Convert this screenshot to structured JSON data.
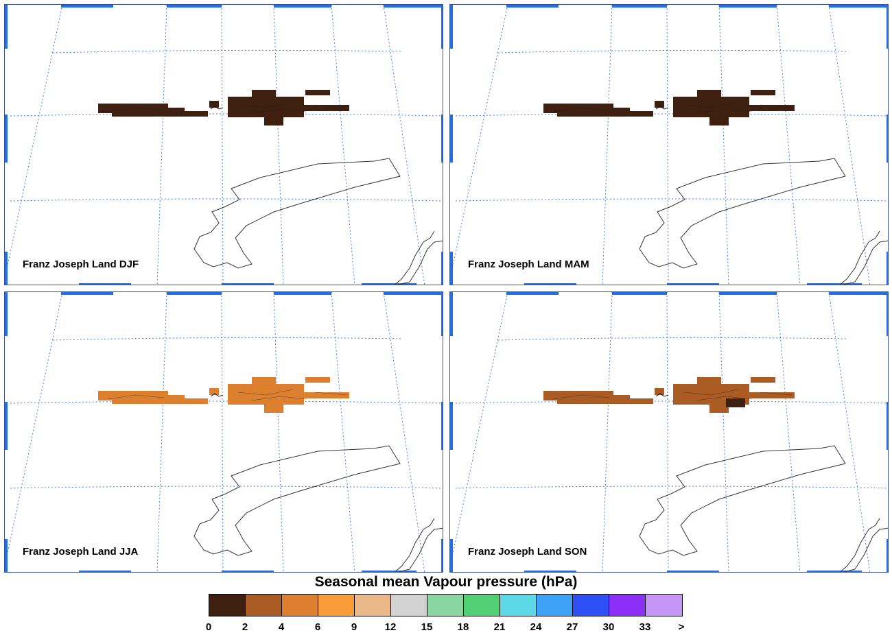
{
  "panels": [
    {
      "label": "Franz Joseph Land DJF",
      "fill": "#3f2010",
      "accent_cell": null
    },
    {
      "label": "Franz Joseph Land MAM",
      "fill": "#3f2010",
      "accent_cell": null
    },
    {
      "label": "Franz Joseph Land JJA",
      "fill": "#dc7f2f",
      "accent_cell": null
    },
    {
      "label": "Franz Joseph Land SON",
      "fill": "#ab5b24",
      "accent_cell": "#3f2010"
    }
  ],
  "legend": {
    "title": "Seasonal mean Vapour pressure (hPa)",
    "colors": [
      "#3f2010",
      "#ab5b24",
      "#dc7f2f",
      "#f79e3b",
      "#ebb888",
      "#d2d2d2",
      "#89d6a3",
      "#52cf74",
      "#5dd8e6",
      "#3ea2f7",
      "#2f4ff7",
      "#8c2ff7",
      "#c693f7"
    ],
    "ticks": [
      "0",
      "2",
      "4",
      "6",
      "9",
      "12",
      "15",
      "18",
      "21",
      "24",
      "27",
      "30",
      "33",
      ">"
    ]
  },
  "colors": {
    "gridline": "#3d7fe6",
    "frame_accent": "#1f6fe8",
    "coastline": "#333333"
  }
}
